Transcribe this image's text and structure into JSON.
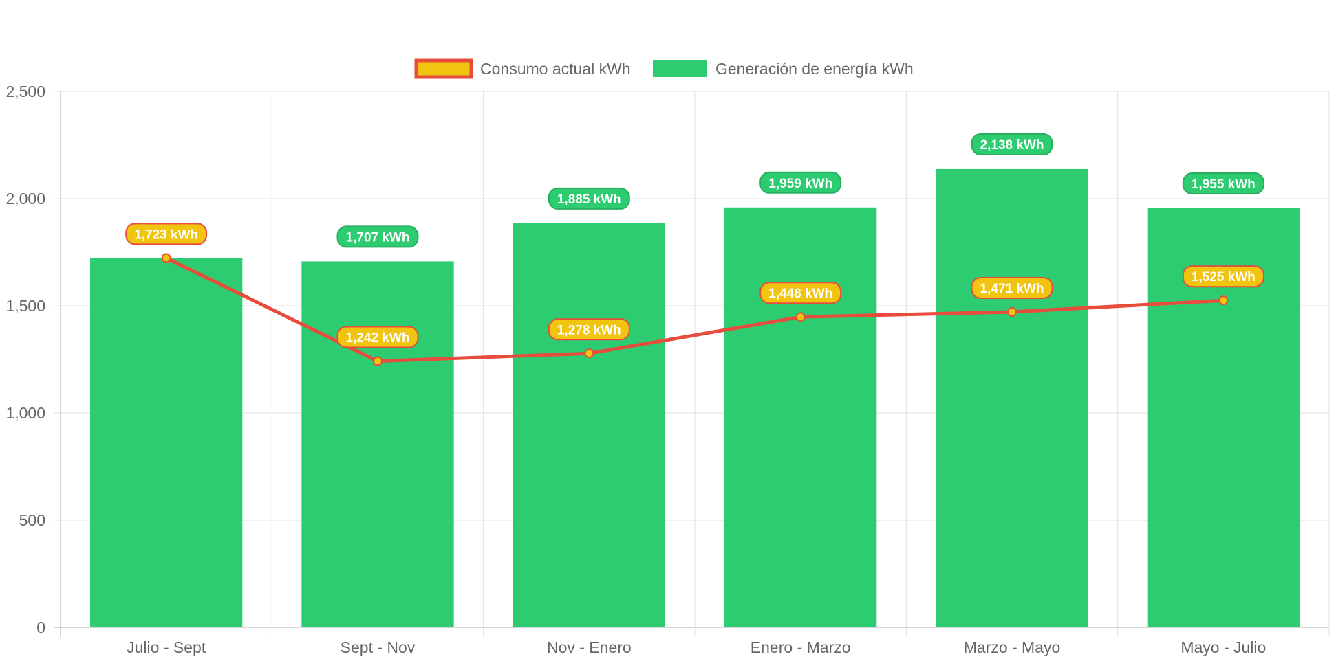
{
  "chart_data": {
    "type": "bar",
    "categories": [
      "Julio - Sept",
      "Sept - Nov",
      "Nov - Enero",
      "Enero - Marzo",
      "Marzo - Mayo",
      "Mayo - Julio"
    ],
    "series": [
      {
        "name": "Consumo actual kWh",
        "type": "line",
        "values": [
          1723,
          1242,
          1278,
          1448,
          1471,
          1525
        ],
        "labels": [
          "1,723 kWh",
          "1,242 kWh",
          "1,278 kWh",
          "1,448 kWh",
          "1,471 kWh",
          "1,525 kWh"
        ],
        "line_color": "#e74c3c",
        "fill_color": "#f1c40f"
      },
      {
        "name": "Generación de energía kWh",
        "type": "bar",
        "values": [
          1723,
          1707,
          1885,
          1959,
          2138,
          1955
        ],
        "labels": [
          "",
          "1,707 kWh",
          "1,885 kWh",
          "1,959 kWh",
          "2,138 kWh",
          "1,955 kWh"
        ],
        "color": "#2ecc71",
        "label_color": "#27ae60"
      }
    ],
    "y_ticks": [
      "0",
      "500",
      "1,000",
      "1,500",
      "2,000",
      "2,500"
    ],
    "y_tick_values": [
      0,
      500,
      1000,
      1500,
      2000,
      2500
    ],
    "ylim": [
      0,
      2500
    ],
    "grid": true,
    "legend_position": "top-center",
    "title": "",
    "xlabel": "",
    "ylabel": ""
  },
  "colors": {
    "grid": "#e1e1e1",
    "axis": "#c8c8c8",
    "tick_text": "#666666",
    "legend_text": "#666666"
  }
}
